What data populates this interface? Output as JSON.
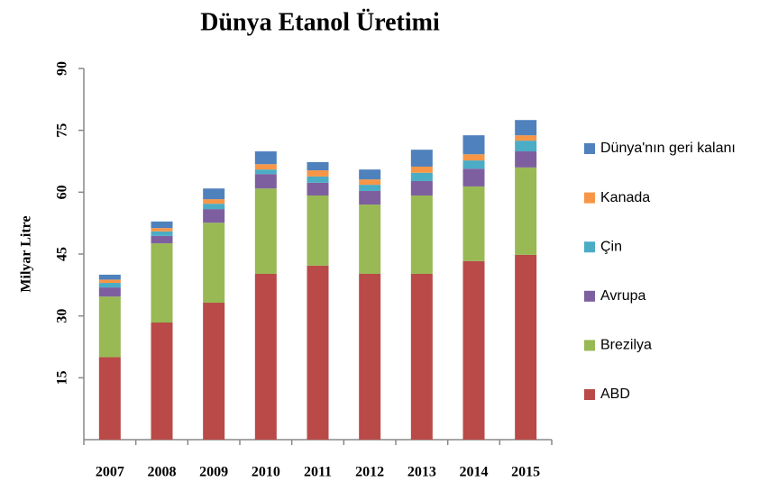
{
  "chart_data": {
    "type": "stacked_bar",
    "title": "Dünya Etanol Üretimi",
    "y_label": "Milyar Litre",
    "categories": [
      "2007",
      "2008",
      "2009",
      "2010",
      "2011",
      "2012",
      "2013",
      "2014",
      "2015"
    ],
    "series": [
      {
        "name": "ABD",
        "color": "#b94a48",
        "values": [
          20.0,
          28.4,
          33.2,
          40.2,
          42.2,
          40.2,
          40.2,
          43.3,
          44.8
        ]
      },
      {
        "name": "Brezilya",
        "color": "#98b954",
        "values": [
          14.7,
          19.2,
          19.4,
          20.7,
          17.0,
          16.8,
          19.0,
          18.1,
          21.2
        ]
      },
      {
        "name": "Avrupa",
        "color": "#7d5fa0",
        "values": [
          2.2,
          1.8,
          3.3,
          3.5,
          3.1,
          3.3,
          3.5,
          4.3,
          3.9
        ]
      },
      {
        "name": "Çin",
        "color": "#4bacc6",
        "values": [
          1.1,
          1.1,
          1.3,
          1.1,
          1.5,
          1.5,
          2.0,
          2.0,
          2.6
        ]
      },
      {
        "name": "Kanada",
        "color": "#f79646",
        "values": [
          0.8,
          0.8,
          1.1,
          1.3,
          1.5,
          1.3,
          1.5,
          1.5,
          1.3
        ]
      },
      {
        "name": "Dünya'nın geri kalanı",
        "color": "#4f81bd",
        "values": [
          1.2,
          1.6,
          2.6,
          3.1,
          2.0,
          2.4,
          4.1,
          4.6,
          3.7
        ]
      }
    ],
    "ylim": [
      0,
      90
    ],
    "yticks": [
      15,
      30,
      45,
      60,
      75,
      90
    ],
    "grid": false
  }
}
